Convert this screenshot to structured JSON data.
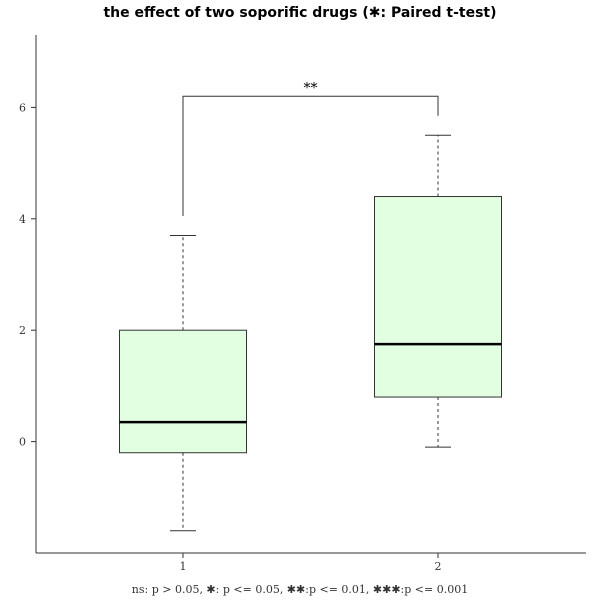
{
  "chart_data": {
    "type": "boxplot",
    "title": "the effect of two soporific drugs (✱: Paired t-test)",
    "categories": [
      "1",
      "2"
    ],
    "ylim": [
      -2.0,
      7.3
    ],
    "yticks": [
      0,
      2,
      4,
      6
    ],
    "ytick_labels": [
      "0",
      "2",
      "4",
      "6"
    ],
    "boxes": [
      {
        "category": "1",
        "whisker_low": -1.6,
        "q1": -0.2,
        "median": 0.35,
        "q3": 2.0,
        "whisker_high": 3.7
      },
      {
        "category": "2",
        "whisker_low": -0.1,
        "q1": 0.8,
        "median": 1.75,
        "q3": 4.4,
        "whisker_high": 5.5
      }
    ],
    "box_color": "#e2ffe2",
    "significance": {
      "label": "**",
      "from": "1",
      "to": "2",
      "y": 6.2
    },
    "caption": "ns: p > 0.05, ✱: p <= 0.05, ✱✱:p <= 0.01, ✱✱✱:p <= 0.001",
    "grid": false,
    "legend": "none"
  }
}
